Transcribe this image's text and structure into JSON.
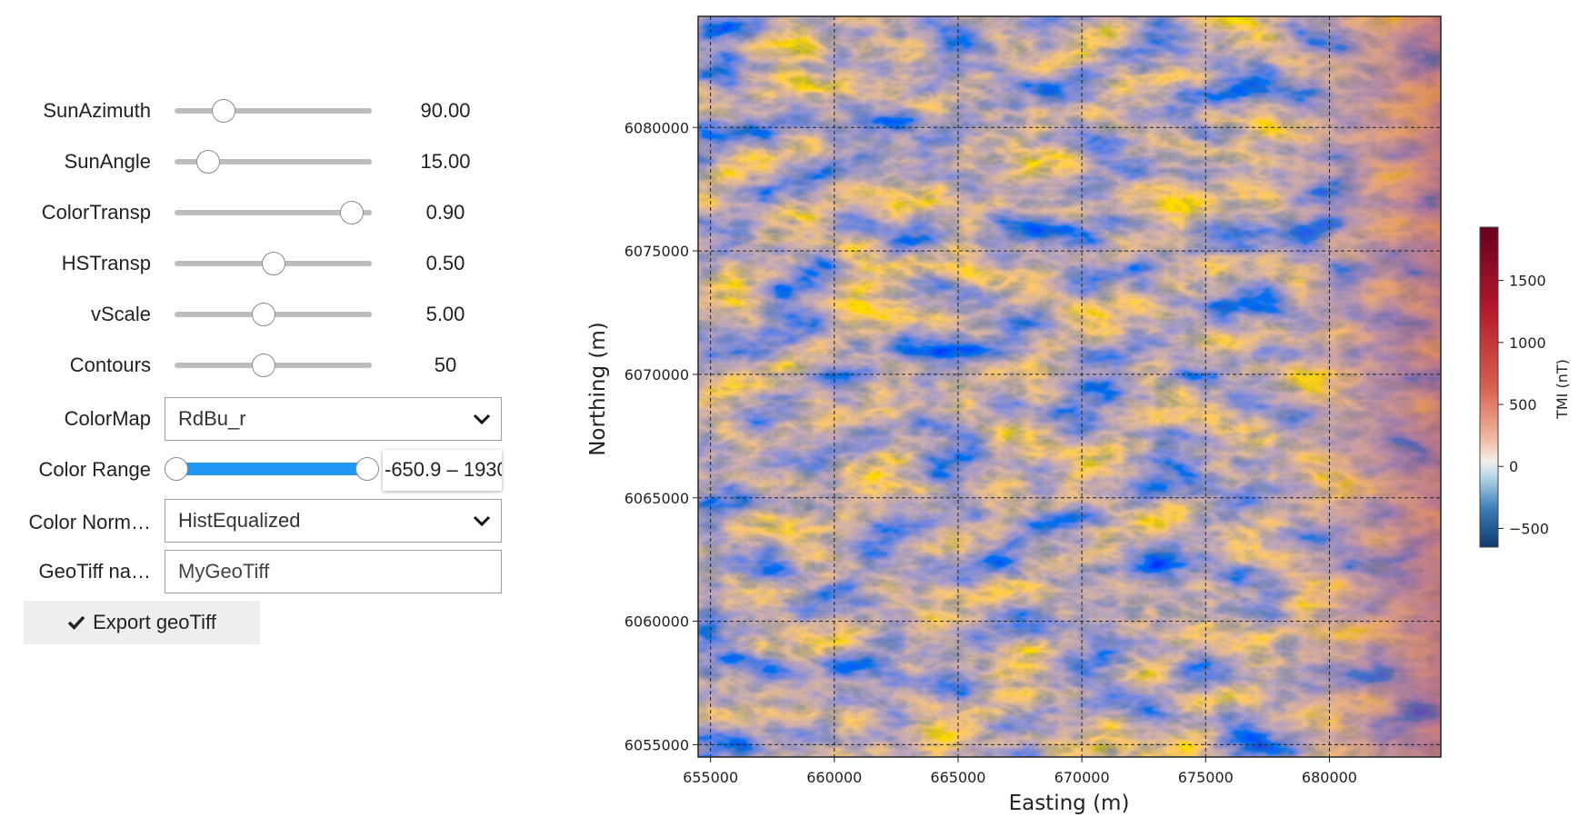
{
  "sliders": [
    {
      "label": "SunAzimuth",
      "value": "90.00",
      "position": 0.25
    },
    {
      "label": "SunAngle",
      "value": "15.00",
      "position": 0.17
    },
    {
      "label": "ColorTransp",
      "value": "0.90",
      "position": 0.9
    },
    {
      "label": "HSTransp",
      "value": "0.50",
      "position": 0.5
    },
    {
      "label": "vScale",
      "value": "5.00",
      "position": 0.45
    },
    {
      "label": "Contours",
      "value": "50",
      "position": 0.45
    }
  ],
  "colormap": {
    "label": "ColorMap",
    "value": "RdBu_r"
  },
  "color_range": {
    "label": "Color Range",
    "readout": "-650.9 – 1930",
    "low_position": 0.0,
    "high_position": 1.0
  },
  "color_norm": {
    "label": "Color Norm…",
    "value": "HistEqualized"
  },
  "geotiff": {
    "label": "GeoTiff na…",
    "value": "MyGeoTiff"
  },
  "export": {
    "label": "Export geoTiff",
    "icon": "check-icon"
  },
  "chart_data": {
    "type": "heatmap",
    "xlabel": "Easting (m)",
    "ylabel": "Northing (m)",
    "x_ticks": [
      "655000",
      "660000",
      "665000",
      "670000",
      "675000",
      "680000"
    ],
    "y_ticks": [
      "6080000",
      "6075000",
      "6070000",
      "6065000",
      "6060000",
      "6055000"
    ],
    "xlim": [
      654500,
      684500
    ],
    "ylim": [
      6054500,
      6084500
    ],
    "grid": true,
    "colorbar": {
      "label": "TMI (nT)",
      "ticks": [
        "1500",
        "1000",
        "500",
        "0",
        "−500"
      ],
      "range": [
        -650.9,
        1930
      ],
      "colormap": "RdBu_r"
    }
  }
}
